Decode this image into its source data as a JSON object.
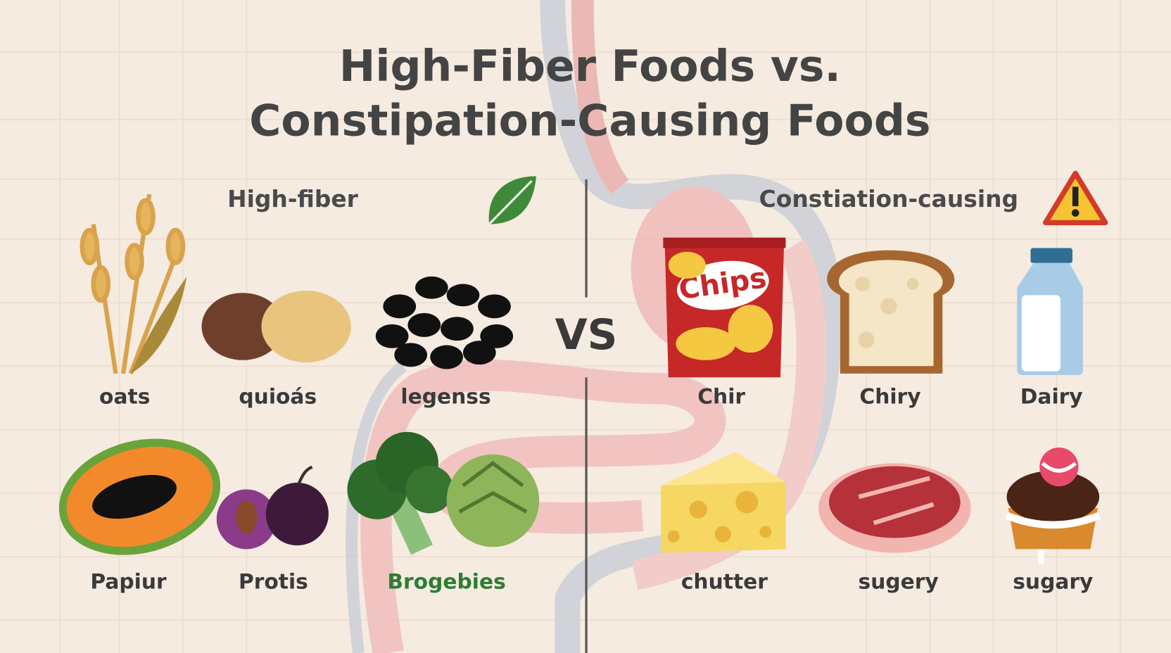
{
  "title": {
    "line1": "High-Fiber Foods vs.",
    "line2": "Constipation-Causing Foods"
  },
  "left_heading": "High-fiber",
  "right_heading": "Constiation-causing",
  "vs": "VS",
  "chips_bag_text": "Chips",
  "left_items": [
    {
      "label": "oats"
    },
    {
      "label": "quioás"
    },
    {
      "label": "legenss"
    },
    {
      "label": "Papiur"
    },
    {
      "label": "Protis"
    },
    {
      "label": "Brogebies"
    }
  ],
  "right_items": [
    {
      "label": "Chir"
    },
    {
      "label": "Chiry"
    },
    {
      "label": "Dairy"
    },
    {
      "label": "chutter"
    },
    {
      "label": "sugery"
    },
    {
      "label": "sugary"
    }
  ]
}
